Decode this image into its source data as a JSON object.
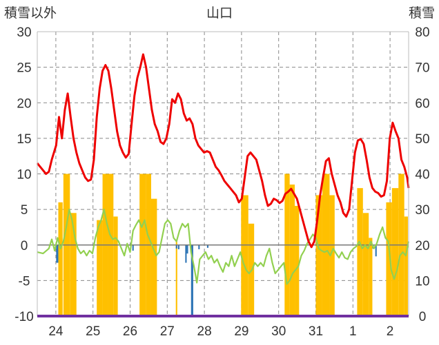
{
  "chart_data": {
    "type": "bar+line",
    "title": "山口",
    "left_axis_label": "積雪以外",
    "right_axis_label": "積雪",
    "left_ylim": [
      -10,
      30
    ],
    "right_ylim": [
      0,
      80
    ],
    "left_ticks": [
      "30",
      "25",
      "20",
      "15",
      "10",
      "5",
      "0",
      "-5",
      "-10"
    ],
    "right_ticks": [
      "80",
      "70",
      "60",
      "50",
      "40",
      "30",
      "20",
      "10",
      "0"
    ],
    "x_tick_labels": [
      "24",
      "25",
      "26",
      "27",
      "28",
      "29",
      "30",
      "31",
      "1",
      "2"
    ],
    "grid": "dashed-vertical-and-horizontal",
    "colors": {
      "red_line": "#ee0000",
      "green_line": "#92d050",
      "orange_bars": "#ffc000",
      "blue_bars": "#2e75b6",
      "baseline": "#7030a0",
      "grid": "#888888"
    },
    "series": [
      {
        "color": "red",
        "axis": "left",
        "kind": "line",
        "points": [
          [
            0,
            11.5
          ],
          [
            0.2,
            11
          ],
          [
            0.4,
            10.5
          ],
          [
            0.6,
            10
          ],
          [
            0.8,
            10.3
          ],
          [
            1,
            12
          ],
          [
            1.3,
            14
          ],
          [
            1.5,
            18
          ],
          [
            1.7,
            15
          ],
          [
            1.9,
            19
          ],
          [
            2.1,
            21.3
          ],
          [
            2.3,
            18
          ],
          [
            2.5,
            15
          ],
          [
            2.7,
            13
          ],
          [
            2.9,
            11.5
          ],
          [
            3.1,
            10.5
          ],
          [
            3.3,
            9.5
          ],
          [
            3.5,
            9
          ],
          [
            3.7,
            9.2
          ],
          [
            3.9,
            12
          ],
          [
            4.1,
            18
          ],
          [
            4.3,
            22
          ],
          [
            4.5,
            24.5
          ],
          [
            4.7,
            25.3
          ],
          [
            4.9,
            24.5
          ],
          [
            5.1,
            22
          ],
          [
            5.3,
            19
          ],
          [
            5.5,
            16
          ],
          [
            5.7,
            14
          ],
          [
            5.9,
            13
          ],
          [
            6.1,
            12.3
          ],
          [
            6.3,
            12.8
          ],
          [
            6.5,
            17
          ],
          [
            6.7,
            21
          ],
          [
            6.9,
            23.5
          ],
          [
            7.1,
            25
          ],
          [
            7.3,
            26.8
          ],
          [
            7.5,
            25
          ],
          [
            7.7,
            22
          ],
          [
            7.9,
            19
          ],
          [
            8.1,
            17
          ],
          [
            8.3,
            16
          ],
          [
            8.5,
            14.5
          ],
          [
            8.7,
            14.2
          ],
          [
            8.9,
            15
          ],
          [
            9.1,
            17
          ],
          [
            9.3,
            20.5
          ],
          [
            9.5,
            20
          ],
          [
            9.7,
            21.3
          ],
          [
            9.9,
            20.5
          ],
          [
            10.1,
            18.5
          ],
          [
            10.3,
            17.5
          ],
          [
            10.5,
            17.8
          ],
          [
            10.7,
            17
          ],
          [
            10.9,
            15
          ],
          [
            11.1,
            14
          ],
          [
            11.3,
            13.5
          ],
          [
            11.5,
            13
          ],
          [
            11.7,
            13.2
          ],
          [
            11.9,
            13
          ],
          [
            12.1,
            12
          ],
          [
            12.3,
            11
          ],
          [
            12.5,
            10.5
          ],
          [
            12.7,
            9.8
          ],
          [
            12.9,
            9
          ],
          [
            13.1,
            8.5
          ],
          [
            13.3,
            8
          ],
          [
            13.5,
            7.5
          ],
          [
            13.7,
            7
          ],
          [
            13.9,
            6
          ],
          [
            14.1,
            6.5
          ],
          [
            14.3,
            9.5
          ],
          [
            14.5,
            12.5
          ],
          [
            14.7,
            13
          ],
          [
            14.9,
            12.5
          ],
          [
            15.1,
            12
          ],
          [
            15.3,
            10.5
          ],
          [
            15.5,
            9
          ],
          [
            15.7,
            7
          ],
          [
            15.9,
            5.5
          ],
          [
            16.1,
            5.8
          ],
          [
            16.3,
            6.5
          ],
          [
            16.5,
            6.3
          ],
          [
            16.7,
            5.9
          ],
          [
            16.9,
            6.2
          ],
          [
            17.1,
            7.2
          ],
          [
            17.3,
            7.5
          ],
          [
            17.5,
            7.9
          ],
          [
            17.7,
            7.2
          ],
          [
            17.9,
            6.5
          ],
          [
            18.1,
            5
          ],
          [
            18.3,
            3.5
          ],
          [
            18.5,
            2
          ],
          [
            18.7,
            0.5
          ],
          [
            18.9,
            -0.3
          ],
          [
            19.1,
            0.5
          ],
          [
            19.3,
            3.5
          ],
          [
            19.5,
            7
          ],
          [
            19.7,
            9.5
          ],
          [
            19.9,
            11.8
          ],
          [
            20.1,
            12.2
          ],
          [
            20.3,
            10
          ],
          [
            20.5,
            8.5
          ],
          [
            20.7,
            7
          ],
          [
            20.9,
            6
          ],
          [
            21.1,
            4.5
          ],
          [
            21.3,
            4
          ],
          [
            21.5,
            5
          ],
          [
            21.7,
            9
          ],
          [
            21.9,
            13
          ],
          [
            22.1,
            14.7
          ],
          [
            22.3,
            14.9
          ],
          [
            22.5,
            14.2
          ],
          [
            22.7,
            12
          ],
          [
            22.9,
            9.5
          ],
          [
            23.1,
            8
          ],
          [
            23.3,
            7.5
          ],
          [
            23.5,
            7.3
          ],
          [
            23.7,
            6.8
          ],
          [
            23.9,
            7
          ],
          [
            24.1,
            9
          ],
          [
            24.3,
            15
          ],
          [
            24.5,
            17.2
          ],
          [
            24.7,
            16
          ],
          [
            24.9,
            15
          ],
          [
            25.1,
            12
          ],
          [
            25.3,
            11
          ],
          [
            25.5,
            9.5
          ],
          [
            25.6,
            8
          ]
        ]
      },
      {
        "color": "green",
        "axis": "left",
        "kind": "line",
        "points": [
          [
            0,
            -1
          ],
          [
            0.4,
            -1.2
          ],
          [
            0.8,
            -0.5
          ],
          [
            1,
            0.8
          ],
          [
            1.2,
            -0.8
          ],
          [
            1.4,
            1
          ],
          [
            1.6,
            -0.5
          ],
          [
            1.8,
            0.5
          ],
          [
            2,
            2.5
          ],
          [
            2.2,
            5
          ],
          [
            2.4,
            3.5
          ],
          [
            2.6,
            1
          ],
          [
            2.8,
            -0.5
          ],
          [
            3,
            -1.2
          ],
          [
            3.2,
            -0.8
          ],
          [
            3.4,
            -1.5
          ],
          [
            3.6,
            -0.8
          ],
          [
            3.8,
            -1.2
          ],
          [
            4,
            1
          ],
          [
            4.2,
            2.5
          ],
          [
            4.4,
            3.5
          ],
          [
            4.6,
            5
          ],
          [
            4.8,
            3
          ],
          [
            5,
            1.5
          ],
          [
            5.2,
            0.8
          ],
          [
            5.4,
            1
          ],
          [
            5.6,
            0.5
          ],
          [
            5.8,
            -0.5
          ],
          [
            6,
            -1.5
          ],
          [
            6.2,
            0.2
          ],
          [
            6.4,
            -1
          ],
          [
            6.6,
            2
          ],
          [
            6.8,
            2.8
          ],
          [
            7,
            3.5
          ],
          [
            7.2,
            2.5
          ],
          [
            7.4,
            3.5
          ],
          [
            7.6,
            1.5
          ],
          [
            7.8,
            0.5
          ],
          [
            8,
            -0.5
          ],
          [
            8.2,
            -1.5
          ],
          [
            8.4,
            -1
          ],
          [
            8.6,
            1
          ],
          [
            8.8,
            3
          ],
          [
            9,
            3.5
          ],
          [
            9.2,
            3
          ],
          [
            9.4,
            1
          ],
          [
            9.6,
            0.5
          ],
          [
            9.8,
            2
          ],
          [
            10,
            3
          ],
          [
            10.2,
            2.5
          ],
          [
            10.4,
            3
          ],
          [
            10.6,
            -1
          ],
          [
            10.8,
            -3
          ],
          [
            11,
            -5.3
          ],
          [
            11.2,
            -2
          ],
          [
            11.4,
            -1.5
          ],
          [
            11.6,
            -1
          ],
          [
            11.8,
            -2
          ],
          [
            12,
            -1.5
          ],
          [
            12.2,
            -2.5
          ],
          [
            12.4,
            -2
          ],
          [
            12.6,
            -3
          ],
          [
            12.8,
            -3.8
          ],
          [
            13,
            -2.5
          ],
          [
            13.2,
            -3
          ],
          [
            13.4,
            -1.5
          ],
          [
            13.6,
            -3
          ],
          [
            13.8,
            -2
          ],
          [
            14,
            -1
          ],
          [
            14.2,
            -2.5
          ],
          [
            14.4,
            -3.5
          ],
          [
            14.6,
            -4
          ],
          [
            14.8,
            -3.5
          ],
          [
            15,
            -2.5
          ],
          [
            15.2,
            -3
          ],
          [
            15.4,
            -2.5
          ],
          [
            15.6,
            -3
          ],
          [
            15.8,
            -1.5
          ],
          [
            16,
            -0.5
          ],
          [
            16.2,
            -2.5
          ],
          [
            16.4,
            -4
          ],
          [
            16.6,
            -3.5
          ],
          [
            16.8,
            -3
          ],
          [
            17,
            -2.5
          ],
          [
            17.2,
            -5.5
          ],
          [
            17.4,
            -5
          ],
          [
            17.6,
            -4
          ],
          [
            17.8,
            -3.5
          ],
          [
            18,
            -3
          ],
          [
            18.2,
            -1.5
          ],
          [
            18.4,
            -0.8
          ],
          [
            18.6,
            0.2
          ],
          [
            18.8,
            0.8
          ],
          [
            19,
            1.5
          ],
          [
            19.2,
            1
          ],
          [
            19.4,
            -0.5
          ],
          [
            19.6,
            -0.8
          ],
          [
            19.8,
            -1
          ],
          [
            20,
            -0.8
          ],
          [
            20.2,
            -1.5
          ],
          [
            20.4,
            -0.5
          ],
          [
            20.6,
            -1.2
          ],
          [
            20.8,
            -1.8
          ],
          [
            21,
            -1
          ],
          [
            21.2,
            -1.8
          ],
          [
            21.4,
            -2
          ],
          [
            21.6,
            -1
          ],
          [
            21.8,
            -0.5
          ],
          [
            22,
            -0.2
          ],
          [
            22.2,
            0.5
          ],
          [
            22.4,
            -0.5
          ],
          [
            22.6,
            0
          ],
          [
            22.8,
            -0.5
          ],
          [
            23,
            0.5
          ],
          [
            23.2,
            -0.5
          ],
          [
            23.4,
            0.2
          ],
          [
            23.6,
            1.5
          ],
          [
            23.8,
            2.5
          ],
          [
            24,
            1
          ],
          [
            24.2,
            0.5
          ],
          [
            24.4,
            -3.5
          ],
          [
            24.6,
            -4.8
          ],
          [
            24.8,
            -3.5
          ],
          [
            25,
            -1.5
          ],
          [
            25.2,
            -1
          ],
          [
            25.4,
            -1.5
          ],
          [
            25.6,
            0.5
          ]
        ]
      },
      {
        "color": "orange",
        "axis": "right",
        "kind": "bar",
        "bars": [
          [
            1.45,
            1.75,
            32
          ],
          [
            1.8,
            2.25,
            40
          ],
          [
            2.25,
            2.7,
            29
          ],
          [
            4.1,
            4.5,
            27
          ],
          [
            4.5,
            4.9,
            40
          ],
          [
            4.9,
            5.25,
            40
          ],
          [
            5.25,
            5.55,
            28
          ],
          [
            7.05,
            7.5,
            40
          ],
          [
            7.5,
            7.85,
            40
          ],
          [
            7.85,
            8.25,
            33
          ],
          [
            9.55,
            9.65,
            21
          ],
          [
            14.05,
            14.55,
            34
          ],
          [
            14.55,
            14.95,
            26
          ],
          [
            17.05,
            17.4,
            40
          ],
          [
            17.4,
            17.75,
            37
          ],
          [
            17.75,
            18.05,
            31
          ],
          [
            19.2,
            19.65,
            34
          ],
          [
            19.65,
            20.15,
            40
          ],
          [
            20.15,
            20.5,
            34
          ],
          [
            22.05,
            22.45,
            36
          ],
          [
            22.45,
            22.85,
            29
          ],
          [
            22.85,
            23.1,
            22
          ],
          [
            24.05,
            24.45,
            32
          ],
          [
            24.45,
            24.9,
            36
          ],
          [
            24.9,
            25.3,
            40
          ],
          [
            25.3,
            25.55,
            28
          ]
        ]
      },
      {
        "color": "blue",
        "axis": "left",
        "kind": "bar",
        "bars": [
          [
            1.3,
            1.45,
            -2.5
          ],
          [
            6.55,
            6.65,
            -0.8
          ],
          [
            9.55,
            9.65,
            -0.5
          ],
          [
            9.7,
            9.8,
            -0.6
          ],
          [
            10.2,
            10.3,
            -2.5
          ],
          [
            10.3,
            10.4,
            -1.2
          ],
          [
            10.6,
            10.75,
            -10
          ],
          [
            11.1,
            11.2,
            -0.6
          ],
          [
            11.7,
            11.8,
            -0.4
          ],
          [
            23.1,
            23.2,
            -0.5
          ],
          [
            23.3,
            23.4,
            -1.6
          ]
        ]
      }
    ]
  }
}
